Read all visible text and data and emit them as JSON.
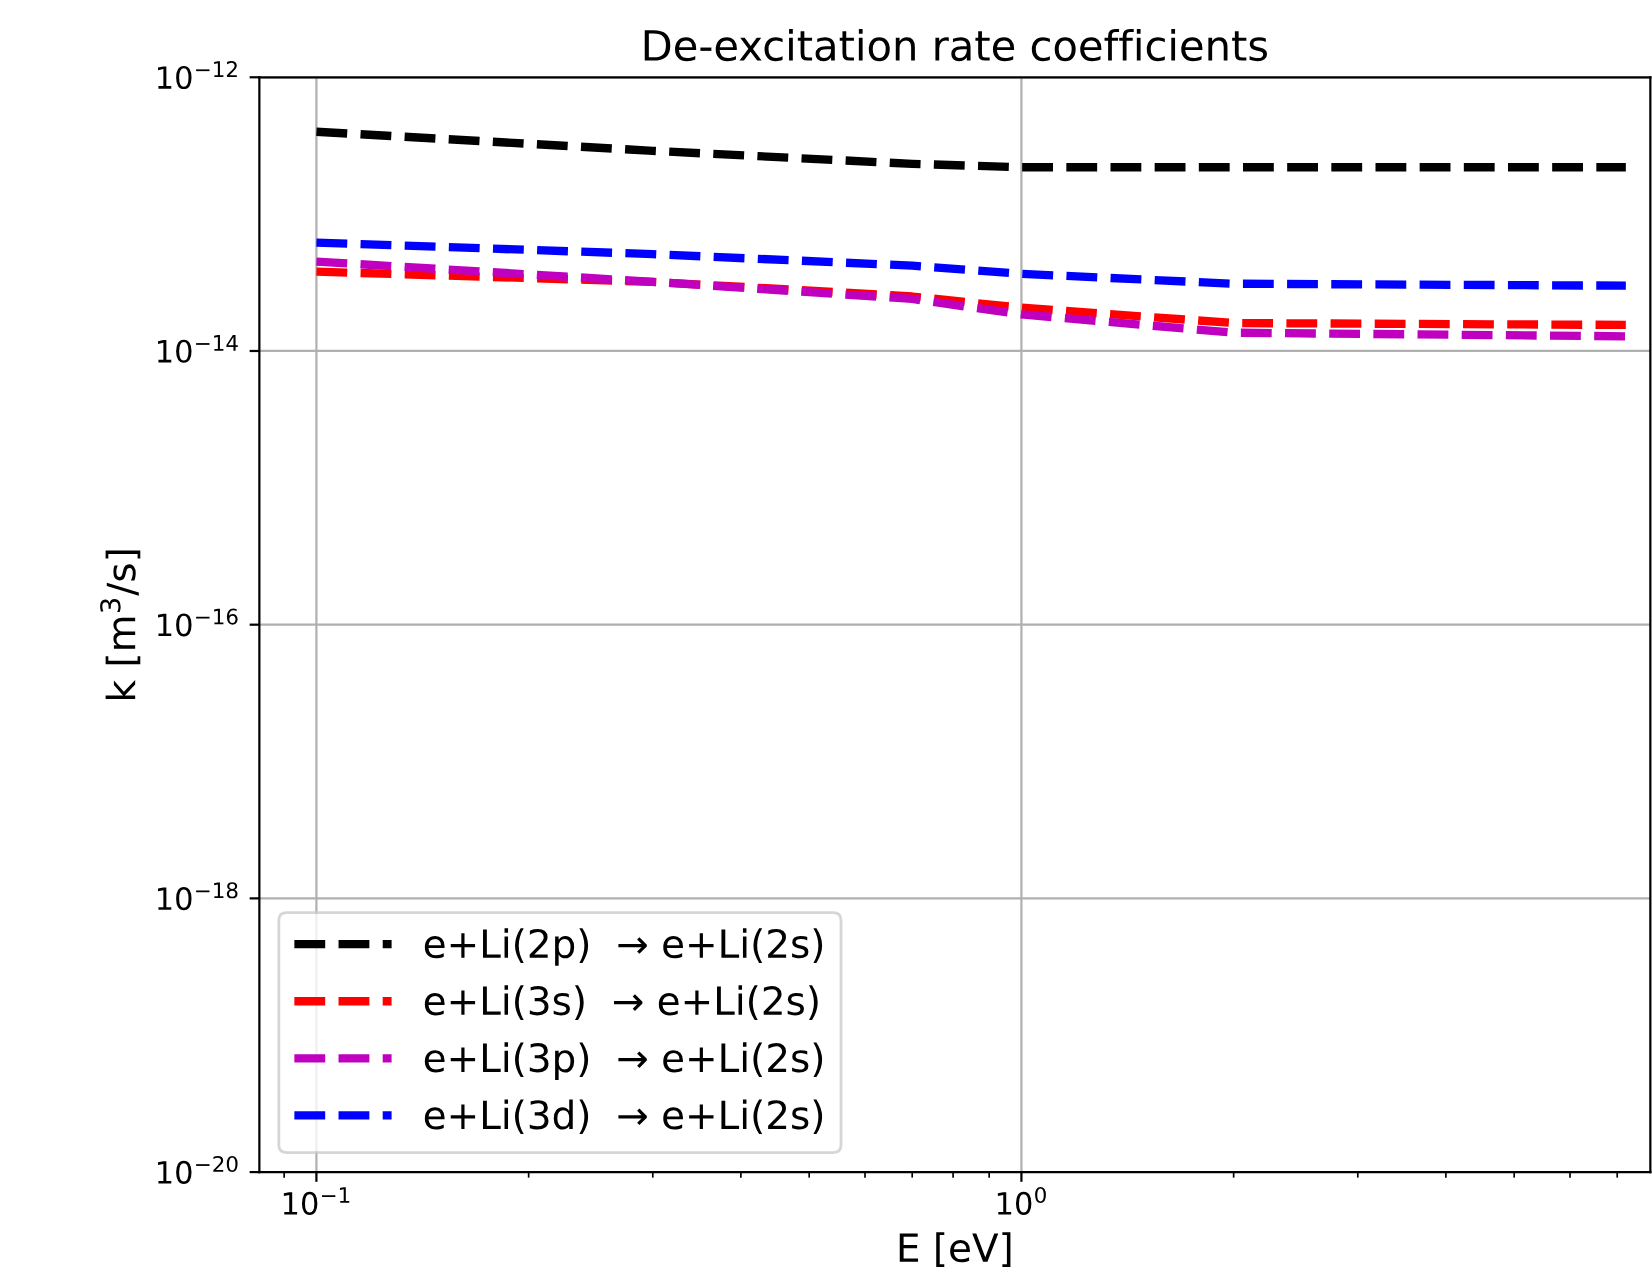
{
  "chart_data": {
    "type": "line",
    "title": "De-excitation rate coefficients",
    "xlabel": "E [eV]",
    "ylabel": "k [m$^{3}$/s]",
    "x": [
      0.1,
      0.3,
      0.7,
      1,
      2,
      7.2
    ],
    "series": [
      {
        "name": "e+Li(2p)  → e+Li(2s)",
        "color": "#000000",
        "values": [
          4e-13,
          2.9e-13,
          2.33e-13,
          2.2e-13,
          2.2e-13,
          2.2e-13
        ]
      },
      {
        "name": "e+Li(3s)  → e+Li(2s)",
        "color": "#ff0000",
        "values": [
          3.8e-14,
          3.2e-14,
          2.5e-14,
          2.07e-14,
          1.6e-14,
          1.55e-14
        ]
      },
      {
        "name": "e+Li(3p)  → e+Li(2s)",
        "color": "#bf00bf",
        "values": [
          4.5e-14,
          3.2e-14,
          2.4e-14,
          1.85e-14,
          1.36e-14,
          1.28e-14
        ]
      },
      {
        "name": "e+Li(3d)  → e+Li(2s)",
        "color": "#0000ff",
        "values": [
          6.2e-14,
          5.1e-14,
          4.2e-14,
          3.66e-14,
          3.1e-14,
          3e-14
        ]
      }
    ],
    "log": "xy",
    "xlim": [
      0.083,
      7.8
    ],
    "ylim": [
      1e-20,
      1e-12
    ],
    "xticks": [
      {
        "value": 0.1,
        "label": "10$^{−1}$"
      },
      {
        "value": 1,
        "label": "10$^{0}$"
      }
    ],
    "yticks": [
      {
        "value": 1e-20,
        "label": "10$^{−20}$"
      },
      {
        "value": 1e-18,
        "label": "10$^{−18}$"
      },
      {
        "value": 1e-16,
        "label": "10$^{−16}$"
      },
      {
        "value": 1e-14,
        "label": "10$^{−14}$"
      },
      {
        "value": 1e-12,
        "label": "10$^{−12}$"
      }
    ],
    "grid": true,
    "legend": "bottom left",
    "line_style": "dashed",
    "marker": "none"
  }
}
